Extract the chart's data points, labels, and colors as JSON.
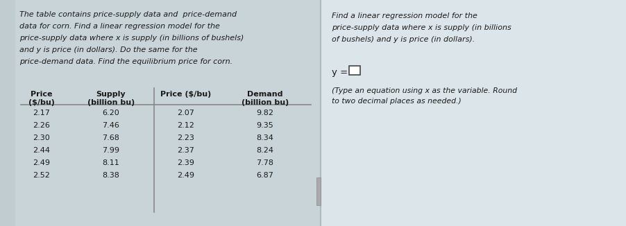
{
  "question_text_left": [
    "The table contains price-supply data and  price-demand",
    "data for corn. Find a linear regression model for the",
    "price-supply data where x is supply (in billions of bushels)",
    "and y is price (in dollars). Do the same for the",
    "price-demand data. Find the equilibrium price for corn."
  ],
  "supply_price": [
    "2.17",
    "2.26",
    "2.30",
    "2.44",
    "2.49",
    "2.52"
  ],
  "supply_qty": [
    "6.20",
    "7.46",
    "7.68",
    "7.99",
    "8.11",
    "8.38"
  ],
  "demand_price": [
    "2.07",
    "2.12",
    "2.23",
    "2.37",
    "2.39",
    "2.49"
  ],
  "demand_qty": [
    "9.82",
    "9.35",
    "8.34",
    "8.24",
    "7.78",
    "6.87"
  ],
  "question_text_right_line1": "Find a linear regression model for the",
  "question_text_right_line2": "price-supply data where x is supply (in billions",
  "question_text_right_line3": "of bushels) and y is price (in dollars).",
  "answer_note_line1": "(Type an equation using x as the variable. Round",
  "answer_note_line2": "to two decimal places as needed.)",
  "bg_color": "#c8d4d8",
  "bg_right_color": "#d8e0e4",
  "text_color": "#1a1a1a",
  "divider_color": "#888888"
}
